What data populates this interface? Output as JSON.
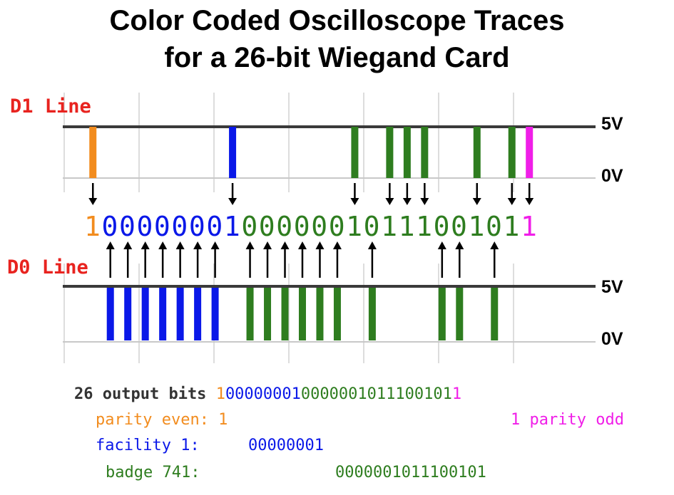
{
  "title_line1": "Color Coded Oscilloscope Traces",
  "title_line2": "for a 26-bit Wiegand Card",
  "d1_label": "D1 Line",
  "d0_label": "D0 Line",
  "voltage_high": "5V",
  "voltage_low": "0V",
  "bit_string": "10000000100000010111001011",
  "bit_groups": {
    "parity_even": "1",
    "facility": "00000001",
    "badge": "0000001011100101",
    "parity_odd": "1"
  },
  "summary": {
    "output_label": "26 output bits ",
    "parity_even_label": "parity even: 1",
    "parity_odd_label": "1 parity odd",
    "facility_label": "facility 1:",
    "facility_value": "00000001",
    "badge_label": "badge 741:",
    "badge_value": "0000001011100101"
  },
  "colors": {
    "parity_even": "#f28c1e",
    "facility": "#0a18e8",
    "badge": "#2e7d1f",
    "parity_odd": "#f01ee8",
    "label_red": "#e8231f",
    "summary_gray": "#333333"
  }
}
